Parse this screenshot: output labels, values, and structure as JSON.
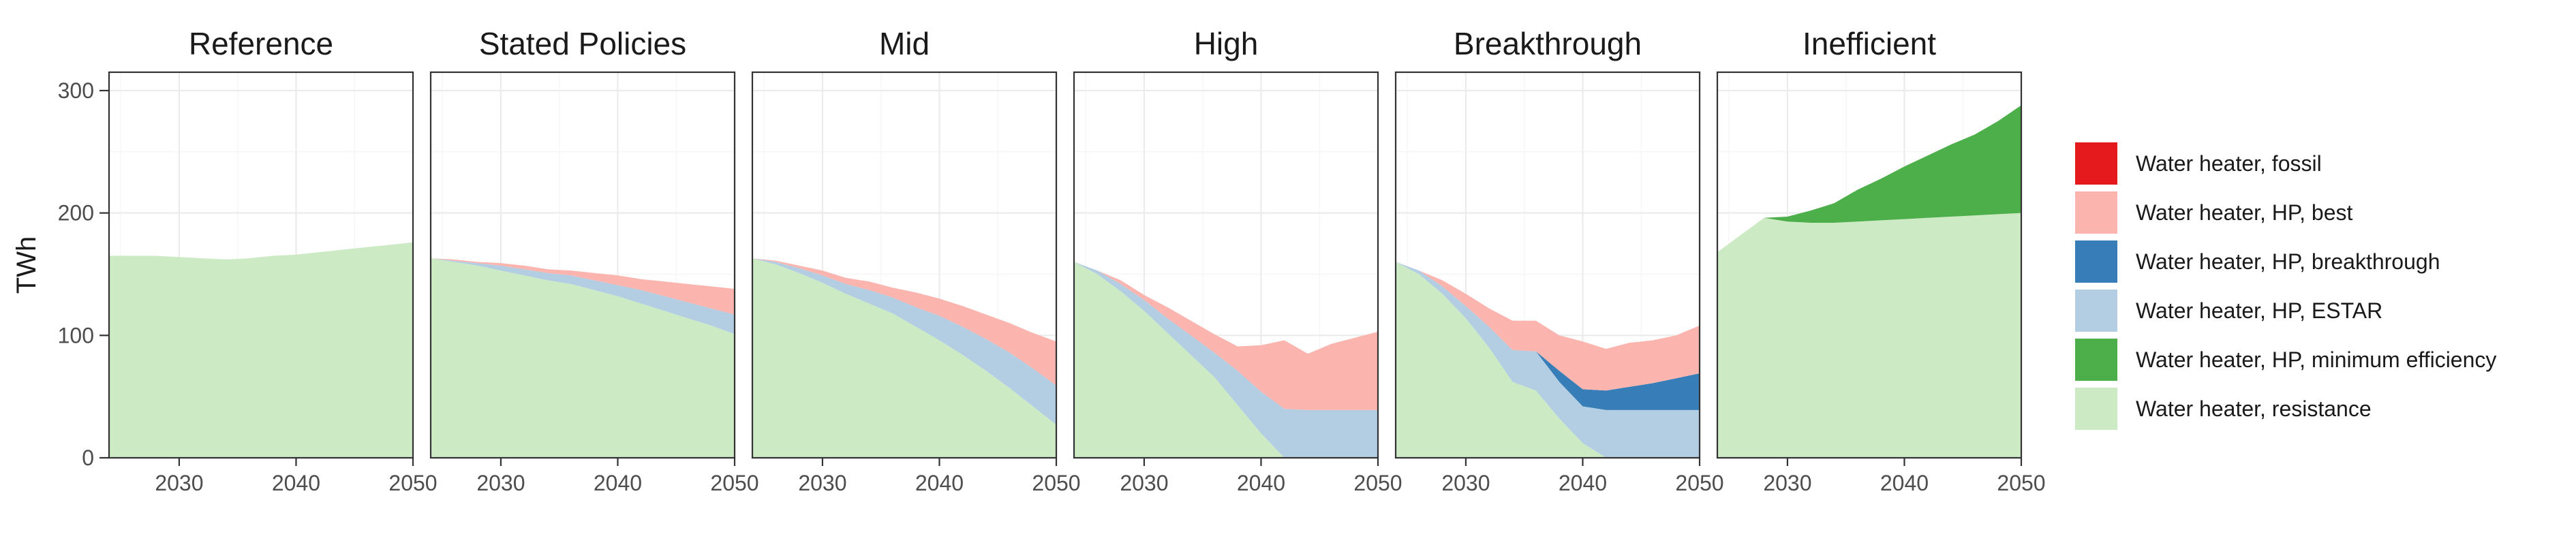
{
  "chart_data": {
    "type": "area",
    "ylabel": "TWh",
    "ylim": [
      0,
      300
    ],
    "xlim": [
      2024,
      2050
    ],
    "x_ticks": [
      2030,
      2040,
      2050
    ],
    "y_ticks": [
      0,
      100,
      200,
      300
    ],
    "grid": true,
    "legend_position": "right",
    "legend": [
      {
        "name": "Water heater, fossil",
        "color": "#e41a1c"
      },
      {
        "name": "Water heater, HP, best",
        "color": "#fbb4ae"
      },
      {
        "name": "Water heater, HP, breakthrough",
        "color": "#377eb8"
      },
      {
        "name": "Water heater, HP, ESTAR",
        "color": "#b3cde3"
      },
      {
        "name": "Water heater, HP, minimum efficiency",
        "color": "#4daf4a"
      },
      {
        "name": "Water heater, resistance",
        "color": "#ccebc5"
      }
    ],
    "x": [
      2024,
      2026,
      2028,
      2030,
      2032,
      2034,
      2036,
      2038,
      2040,
      2042,
      2044,
      2046,
      2048,
      2050
    ],
    "panels": [
      {
        "title": "Reference",
        "series": [
          {
            "name": "Water heater, resistance",
            "values": [
              165,
              165,
              165,
              164,
              163,
              162,
              163,
              165,
              166,
              168,
              170,
              172,
              174,
              176
            ]
          }
        ]
      },
      {
        "title": "Stated Policies",
        "series": [
          {
            "name": "Water heater, resistance",
            "values": [
              163,
              160,
              157,
              153,
              149,
              145,
              142,
              137,
              132,
              126,
              120,
              114,
              108,
              101
            ]
          },
          {
            "name": "Water heater, HP, ESTAR",
            "values": [
              0,
              1,
              2,
              4,
              5,
              6,
              7,
              8,
              9,
              11,
              12,
              13,
              14,
              16
            ]
          },
          {
            "name": "Water heater, HP, best",
            "values": [
              0,
              1,
              1,
              2,
              3,
              3,
              4,
              6,
              8,
              9,
              12,
              15,
              18,
              21
            ]
          }
        ]
      },
      {
        "title": "Mid",
        "series": [
          {
            "name": "Water heater, resistance",
            "values": [
              163,
              158,
              151,
              143,
              134,
              126,
              118,
              107,
              96,
              84,
              71,
              57,
              42,
              27
            ]
          },
          {
            "name": "Water heater, HP, ESTAR",
            "values": [
              0,
              2,
              4,
              6,
              8,
              11,
              13,
              16,
              20,
              23,
              26,
              29,
              31,
              32
            ]
          },
          {
            "name": "Water heater, HP, best",
            "values": [
              0,
              1,
              2,
              4,
              5,
              7,
              8,
              12,
              14,
              17,
              20,
              24,
              29,
              36
            ]
          }
        ]
      },
      {
        "title": "High",
        "series": [
          {
            "name": "Water heater, resistance",
            "values": [
              160,
              150,
              136,
              120,
              102,
              84,
              66,
              43,
              20,
              0,
              0,
              0,
              0,
              0
            ]
          },
          {
            "name": "Water heater, HP, ESTAR",
            "values": [
              0,
              3,
              6,
              9,
              12,
              16,
              20,
              28,
              34,
              40,
              39,
              39,
              39,
              39
            ]
          },
          {
            "name": "Water heater, HP, best",
            "values": [
              0,
              0,
              3,
              4,
              9,
              12,
              15,
              20,
              38,
              56,
              46,
              54,
              59,
              64
            ]
          }
        ]
      },
      {
        "title": "Breakthrough",
        "series": [
          {
            "name": "Water heater, resistance",
            "values": [
              160,
              150,
              134,
              114,
              90,
              62,
              55,
              32,
              12,
              0,
              0,
              0,
              0,
              0
            ]
          },
          {
            "name": "Water heater, HP, ESTAR",
            "values": [
              0,
              3,
              6,
              10,
              17,
              26,
              32,
              30,
              30,
              39,
              39,
              39,
              39,
              39
            ]
          },
          {
            "name": "Water heater, HP, breakthrough",
            "values": [
              0,
              0,
              0,
              0,
              0,
              0,
              0,
              9,
              14,
              16,
              19,
              22,
              26,
              30
            ]
          },
          {
            "name": "Water heater, HP, best",
            "values": [
              0,
              0,
              5,
              10,
              15,
              24,
              25,
              29,
              39,
              34,
              36,
              35,
              35,
              39
            ]
          }
        ]
      },
      {
        "title": "Inefficient",
        "series": [
          {
            "name": "Water heater, resistance",
            "values": [
              168,
              182,
              196,
              193,
              192,
              192,
              193,
              194,
              195,
              196,
              197,
              198,
              199,
              200
            ]
          },
          {
            "name": "Water heater, HP, minimum efficiency",
            "values": [
              0,
              0,
              0,
              4,
              10,
              16,
              26,
              34,
              43,
              51,
              59,
              66,
              76,
              88
            ]
          }
        ]
      }
    ]
  }
}
